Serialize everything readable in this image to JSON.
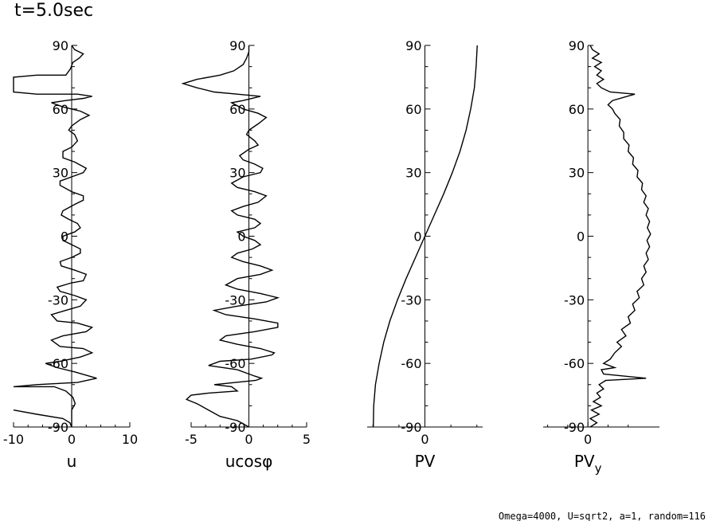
{
  "title": "t=5.0sec",
  "footer": "Omega=4000, U=sqrt2, a=1, random=116",
  "chart_data": [
    {
      "type": "line",
      "xlabel": "u",
      "ylabel_ticks": [
        "-90",
        "-60",
        "-30",
        "0",
        "30",
        "60",
        "90"
      ],
      "xticks": [
        "-10",
        "0",
        "10"
      ],
      "xlim": [
        -10,
        10
      ],
      "ylim": [
        -90,
        90
      ],
      "series": [
        {
          "name": "u",
          "points": [
            [
              -10,
              -82
            ],
            [
              -6,
              -84
            ],
            [
              -1.5,
              -86
            ],
            [
              -0.3,
              -88
            ],
            [
              0,
              -90
            ],
            [
              0,
              -82
            ],
            [
              0.6,
              -79
            ],
            [
              0.2,
              -76
            ],
            [
              -1,
              -73
            ],
            [
              -3,
              -71
            ],
            [
              -10,
              -71
            ],
            [
              -6,
              -70
            ],
            [
              1,
              -69
            ],
            [
              4.3,
              -67
            ],
            [
              3,
              -66
            ],
            [
              0.5,
              -64
            ],
            [
              -2.5,
              -62
            ],
            [
              -4.5,
              -60
            ],
            [
              -2,
              -59
            ],
            [
              1.5,
              -57
            ],
            [
              3.5,
              -55
            ],
            [
              2,
              -53
            ],
            [
              -2,
              -52
            ],
            [
              -3.5,
              -49
            ],
            [
              -1.5,
              -47
            ],
            [
              2.5,
              -45
            ],
            [
              3.5,
              -43
            ],
            [
              1,
              -41
            ],
            [
              -2.5,
              -40
            ],
            [
              -3.5,
              -37
            ],
            [
              -1,
              -35
            ],
            [
              1.5,
              -33
            ],
            [
              2.5,
              -30
            ],
            [
              0.5,
              -28
            ],
            [
              -2,
              -26
            ],
            [
              -2.5,
              -24
            ],
            [
              0,
              -22
            ],
            [
              2,
              -21
            ],
            [
              2.5,
              -18
            ],
            [
              0.5,
              -16
            ],
            [
              -1.8,
              -14
            ],
            [
              -2,
              -12
            ],
            [
              0,
              -10
            ],
            [
              1.5,
              -8
            ],
            [
              1.5,
              -6
            ],
            [
              0,
              -4
            ],
            [
              -1.5,
              -2
            ],
            [
              -1.5,
              0
            ],
            [
              0.5,
              2
            ],
            [
              1.5,
              4
            ],
            [
              1,
              6
            ],
            [
              -0.5,
              8
            ],
            [
              -1.8,
              10
            ],
            [
              -1.5,
              12
            ],
            [
              0.5,
              15
            ],
            [
              2,
              17
            ],
            [
              2,
              19
            ],
            [
              0,
              21
            ],
            [
              -2,
              24
            ],
            [
              -2,
              26
            ],
            [
              0,
              28
            ],
            [
              2,
              30
            ],
            [
              2.5,
              32
            ],
            [
              0.5,
              35
            ],
            [
              -1.5,
              37
            ],
            [
              -1.5,
              40
            ],
            [
              0,
              42
            ],
            [
              1,
              45
            ],
            [
              0.5,
              48
            ],
            [
              -0.5,
              50
            ],
            [
              0,
              52
            ],
            [
              1.5,
              55
            ],
            [
              3,
              57
            ],
            [
              1.5,
              59
            ],
            [
              -1.5,
              61
            ],
            [
              -3.5,
              63
            ],
            [
              -1,
              64
            ],
            [
              2,
              65
            ],
            [
              3.5,
              66
            ],
            [
              1,
              67
            ],
            [
              -6,
              67
            ],
            [
              -10,
              68
            ],
            [
              -10,
              75
            ],
            [
              -6,
              76
            ],
            [
              -1,
              76
            ],
            [
              -0.2,
              79
            ],
            [
              0.2,
              82
            ],
            [
              1.3,
              84
            ],
            [
              2,
              86
            ],
            [
              0.5,
              88
            ],
            [
              0,
              90
            ]
          ]
        }
      ]
    },
    {
      "type": "line",
      "xlabel": "ucosφ",
      "ylabel_ticks": [
        "-90",
        "-60",
        "-30",
        "0",
        "30",
        "60",
        "90"
      ],
      "xticks": [
        "-5",
        "0",
        "5"
      ],
      "xlim": [
        -5,
        5
      ],
      "ylim": [
        -90,
        90
      ],
      "series": [
        {
          "name": "ucos",
          "points": [
            [
              0,
              -90
            ],
            [
              -1,
              -87
            ],
            [
              -2.5,
              -85
            ],
            [
              -3.5,
              -82
            ],
            [
              -4.5,
              -79
            ],
            [
              -5.4,
              -77
            ],
            [
              -5,
              -75
            ],
            [
              -3.5,
              -74
            ],
            [
              -1,
              -73
            ],
            [
              -1.5,
              -71
            ],
            [
              -3,
              -70
            ],
            [
              0.6,
              -68
            ],
            [
              1.1,
              -67
            ],
            [
              0.5,
              -66
            ],
            [
              -1,
              -63
            ],
            [
              -3.5,
              -61
            ],
            [
              -2.5,
              -59
            ],
            [
              0.2,
              -58
            ],
            [
              2,
              -56
            ],
            [
              2.2,
              -55
            ],
            [
              1,
              -53
            ],
            [
              -1,
              -51
            ],
            [
              -2.5,
              -49
            ],
            [
              -2,
              -47
            ],
            [
              0.5,
              -45
            ],
            [
              2.5,
              -43
            ],
            [
              2.5,
              -41
            ],
            [
              0.5,
              -39
            ],
            [
              -2,
              -37
            ],
            [
              -3,
              -35
            ],
            [
              -1,
              -33
            ],
            [
              1.5,
              -31
            ],
            [
              2.5,
              -29
            ],
            [
              1,
              -27
            ],
            [
              -1,
              -25
            ],
            [
              -2,
              -23
            ],
            [
              -1,
              -20
            ],
            [
              1,
              -18
            ],
            [
              2,
              -16
            ],
            [
              1,
              -14
            ],
            [
              -0.5,
              -12
            ],
            [
              -1.5,
              -10
            ],
            [
              -1,
              -8
            ],
            [
              0.3,
              -6
            ],
            [
              1,
              -4
            ],
            [
              0.5,
              -2
            ],
            [
              -0.5,
              0
            ],
            [
              -1,
              2
            ],
            [
              0.5,
              4
            ],
            [
              1,
              6
            ],
            [
              0.5,
              8
            ],
            [
              -1,
              10
            ],
            [
              -1.5,
              12
            ],
            [
              -0.5,
              14
            ],
            [
              0.8,
              16
            ],
            [
              1.5,
              19
            ],
            [
              0.5,
              21
            ],
            [
              -1,
              23
            ],
            [
              -1.5,
              25
            ],
            [
              -0.5,
              28
            ],
            [
              1,
              30
            ],
            [
              1.2,
              32
            ],
            [
              0.5,
              34
            ],
            [
              -0.5,
              36
            ],
            [
              -0.8,
              38
            ],
            [
              0,
              41
            ],
            [
              0.8,
              43
            ],
            [
              0.5,
              45
            ],
            [
              -0.2,
              48
            ],
            [
              0,
              50
            ],
            [
              0.8,
              53
            ],
            [
              1.5,
              56
            ],
            [
              0.8,
              58
            ],
            [
              -0.5,
              60
            ],
            [
              -1.5,
              63
            ],
            [
              -0.5,
              64
            ],
            [
              1,
              66
            ],
            [
              -1,
              67
            ],
            [
              -3,
              68
            ],
            [
              -4.5,
              70
            ],
            [
              -5.7,
              72
            ],
            [
              -4.5,
              74
            ],
            [
              -2.5,
              76
            ],
            [
              -1.3,
              78
            ],
            [
              -0.5,
              81
            ],
            [
              -0.2,
              84
            ],
            [
              0,
              87
            ],
            [
              0,
              90
            ]
          ]
        }
      ]
    },
    {
      "type": "line",
      "xlabel": "PV",
      "ylabel_ticks": [
        "-90",
        "-60",
        "-30",
        "0",
        "30",
        "60",
        "90"
      ],
      "xticks": [
        "0"
      ],
      "xlim": [
        -1.6,
        1.6
      ],
      "ylim": [
        -90,
        90
      ],
      "series": [
        {
          "name": "PV",
          "points": [
            [
              -1.43,
              -90
            ],
            [
              -1.42,
              -80
            ],
            [
              -1.37,
              -70
            ],
            [
              -1.27,
              -60
            ],
            [
              -1.14,
              -50
            ],
            [
              -0.97,
              -40
            ],
            [
              -0.76,
              -30
            ],
            [
              -0.52,
              -20
            ],
            [
              -0.26,
              -10
            ],
            [
              0,
              0
            ],
            [
              0.26,
              10
            ],
            [
              0.52,
              20
            ],
            [
              0.76,
              30
            ],
            [
              0.97,
              40
            ],
            [
              1.14,
              50
            ],
            [
              1.27,
              60
            ],
            [
              1.37,
              70
            ],
            [
              1.42,
              80
            ],
            [
              1.45,
              90
            ]
          ]
        }
      ]
    },
    {
      "type": "line",
      "xlabel": "PV",
      "xlabel_sub": "y",
      "ylabel_ticks": [
        "-90",
        "-60",
        "-30",
        "0",
        "30",
        "60",
        "90"
      ],
      "xticks": [
        "0"
      ],
      "xlim": [
        -1,
        1.6
      ],
      "ylim": [
        -90,
        90
      ],
      "series": [
        {
          "name": "PVy",
          "points": [
            [
              0.05,
              -90
            ],
            [
              0.2,
              -88
            ],
            [
              0.05,
              -86
            ],
            [
              0.25,
              -84
            ],
            [
              0.08,
              -82
            ],
            [
              0.3,
              -80
            ],
            [
              0.12,
              -78
            ],
            [
              0.28,
              -76
            ],
            [
              0.2,
              -74
            ],
            [
              0.35,
              -72
            ],
            [
              0.25,
              -70
            ],
            [
              0.4,
              -68
            ],
            [
              1.3,
              -67
            ],
            [
              0.35,
              -65
            ],
            [
              0.3,
              -63
            ],
            [
              0.6,
              -62
            ],
            [
              0.35,
              -60
            ],
            [
              0.5,
              -58
            ],
            [
              0.6,
              -55
            ],
            [
              0.75,
              -52
            ],
            [
              0.65,
              -50
            ],
            [
              0.85,
              -47
            ],
            [
              0.75,
              -44
            ],
            [
              0.95,
              -41
            ],
            [
              0.9,
              -38
            ],
            [
              1.05,
              -35
            ],
            [
              1.0,
              -32
            ],
            [
              1.15,
              -29
            ],
            [
              1.1,
              -26
            ],
            [
              1.25,
              -23
            ],
            [
              1.2,
              -20
            ],
            [
              1.3,
              -17
            ],
            [
              1.25,
              -14
            ],
            [
              1.35,
              -11
            ],
            [
              1.3,
              -8
            ],
            [
              1.38,
              -5
            ],
            [
              1.32,
              -2
            ],
            [
              1.4,
              1
            ],
            [
              1.33,
              4
            ],
            [
              1.38,
              7
            ],
            [
              1.3,
              10
            ],
            [
              1.35,
              13
            ],
            [
              1.25,
              16
            ],
            [
              1.3,
              19
            ],
            [
              1.2,
              22
            ],
            [
              1.22,
              25
            ],
            [
              1.1,
              28
            ],
            [
              1.12,
              31
            ],
            [
              1.0,
              34
            ],
            [
              1.02,
              37
            ],
            [
              0.9,
              40
            ],
            [
              0.92,
              43
            ],
            [
              0.8,
              46
            ],
            [
              0.8,
              49
            ],
            [
              0.7,
              52
            ],
            [
              0.72,
              55
            ],
            [
              0.6,
              58
            ],
            [
              0.55,
              60
            ],
            [
              0.45,
              62
            ],
            [
              0.55,
              64
            ],
            [
              1.05,
              67
            ],
            [
              0.5,
              68
            ],
            [
              0.3,
              70
            ],
            [
              0.2,
              72
            ],
            [
              0.35,
              74
            ],
            [
              0.2,
              76
            ],
            [
              0.3,
              78
            ],
            [
              0.15,
              80
            ],
            [
              0.3,
              82
            ],
            [
              0.1,
              84
            ],
            [
              0.25,
              86
            ],
            [
              0.1,
              88
            ],
            [
              0.05,
              90
            ]
          ]
        }
      ]
    }
  ]
}
